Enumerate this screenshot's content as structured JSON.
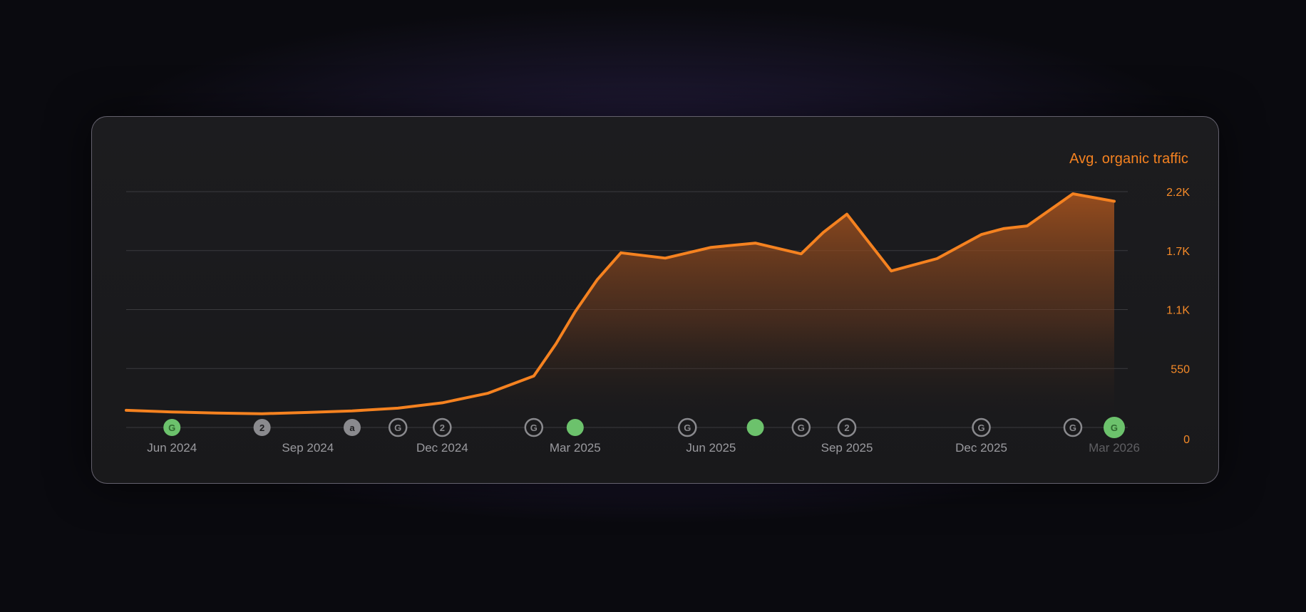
{
  "chart_data": {
    "type": "area",
    "title": "Avg. organic traffic",
    "y_axis": {
      "position": "right",
      "ylim": [
        0,
        2200
      ],
      "ticks": [
        {
          "value": 0,
          "label": "0"
        },
        {
          "value": 550,
          "label": "550"
        },
        {
          "value": 1100,
          "label": "1.1K"
        },
        {
          "value": 1650,
          "label": "1.7K"
        },
        {
          "value": 2200,
          "label": "2.2K"
        }
      ],
      "grid": true
    },
    "x_axis": {
      "xlim": [
        "2024-05-01",
        "2026-03-15"
      ],
      "ticks": [
        {
          "date": "2024-06-01",
          "label": "Jun 2024"
        },
        {
          "date": "2024-09-01",
          "label": "Sep 2024"
        },
        {
          "date": "2024-12-01",
          "label": "Dec 2024"
        },
        {
          "date": "2025-03-01",
          "label": "Mar 2025"
        },
        {
          "date": "2025-06-01",
          "label": "Jun 2025"
        },
        {
          "date": "2025-09-01",
          "label": "Sep 2025"
        },
        {
          "date": "2025-12-01",
          "label": "Dec 2025"
        },
        {
          "date": "2026-03-01",
          "label": "Mar 2026",
          "faded": true
        }
      ]
    },
    "series": [
      {
        "color": "#f58220",
        "points": [
          {
            "x": "2024-05-01",
            "y": 160
          },
          {
            "x": "2024-06-01",
            "y": 145
          },
          {
            "x": "2024-07-01",
            "y": 135
          },
          {
            "x": "2024-08-01",
            "y": 128
          },
          {
            "x": "2024-09-01",
            "y": 140
          },
          {
            "x": "2024-10-01",
            "y": 155
          },
          {
            "x": "2024-11-01",
            "y": 180
          },
          {
            "x": "2024-12-01",
            "y": 230
          },
          {
            "x": "2025-01-01",
            "y": 320
          },
          {
            "x": "2025-02-01",
            "y": 480
          },
          {
            "x": "2025-02-16",
            "y": 780
          },
          {
            "x": "2025-03-01",
            "y": 1080
          },
          {
            "x": "2025-03-16",
            "y": 1380
          },
          {
            "x": "2025-04-01",
            "y": 1630
          },
          {
            "x": "2025-05-01",
            "y": 1580
          },
          {
            "x": "2025-06-01",
            "y": 1680
          },
          {
            "x": "2025-07-01",
            "y": 1720
          },
          {
            "x": "2025-08-01",
            "y": 1620
          },
          {
            "x": "2025-08-16",
            "y": 1820
          },
          {
            "x": "2025-09-01",
            "y": 1990
          },
          {
            "x": "2025-10-01",
            "y": 1460
          },
          {
            "x": "2025-11-01",
            "y": 1575
          },
          {
            "x": "2025-12-01",
            "y": 1800
          },
          {
            "x": "2025-12-16",
            "y": 1855
          },
          {
            "x": "2026-01-01",
            "y": 1880
          },
          {
            "x": "2026-02-01",
            "y": 2180
          },
          {
            "x": "2026-03-01",
            "y": 2110
          }
        ]
      }
    ],
    "markers": [
      {
        "date": "2024-06-01",
        "kind": "filled",
        "glyph": "G",
        "color": "#6cc26c"
      },
      {
        "date": "2024-08-01",
        "kind": "filled",
        "glyph": "2",
        "color": "#8a8a8e"
      },
      {
        "date": "2024-10-01",
        "kind": "filled",
        "glyph": "a",
        "color": "#8a8a8e"
      },
      {
        "date": "2024-11-01",
        "kind": "ring",
        "glyph": "G",
        "color": "#8a8a8e"
      },
      {
        "date": "2024-12-01",
        "kind": "ring",
        "glyph": "2",
        "color": "#8a8a8e"
      },
      {
        "date": "2025-02-01",
        "kind": "ring",
        "glyph": "G",
        "color": "#8a8a8e"
      },
      {
        "date": "2025-03-01",
        "kind": "filled",
        "glyph": "",
        "color": "#6cc26c"
      },
      {
        "date": "2025-05-16",
        "kind": "ring",
        "glyph": "G",
        "color": "#8a8a8e"
      },
      {
        "date": "2025-07-01",
        "kind": "filled",
        "glyph": "",
        "color": "#6cc26c"
      },
      {
        "date": "2025-08-01",
        "kind": "ring",
        "glyph": "G",
        "color": "#8a8a8e"
      },
      {
        "date": "2025-09-01",
        "kind": "ring",
        "glyph": "2",
        "color": "#8a8a8e"
      },
      {
        "date": "2025-12-01",
        "kind": "ring",
        "glyph": "G",
        "color": "#8a8a8e"
      },
      {
        "date": "2026-02-01",
        "kind": "ring",
        "glyph": "G",
        "color": "#8a8a8e"
      },
      {
        "date": "2026-03-01",
        "kind": "filled-large",
        "glyph": "G",
        "color": "#6cc26c"
      }
    ]
  }
}
